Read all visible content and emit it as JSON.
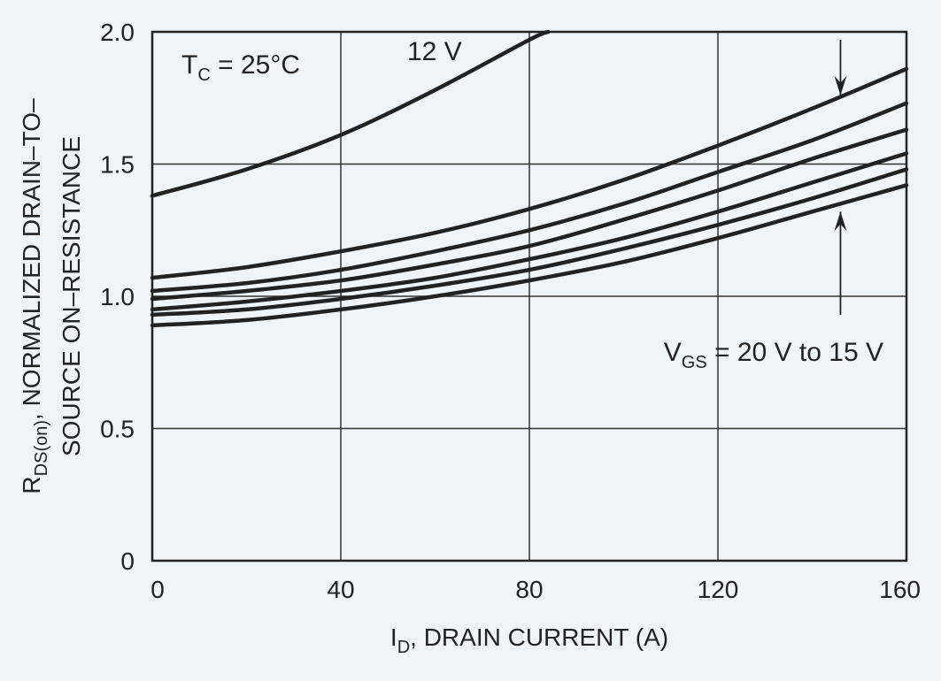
{
  "chart_data": {
    "type": "line",
    "title": "",
    "xlabel": {
      "main": "I",
      "sub": "D",
      "rest": ", DRAIN CURRENT (A)"
    },
    "ylabel": {
      "line1_main": "R",
      "line1_sub": "DS(on)",
      "line1_rest": ", NORMALIZED DRAIN–TO–",
      "line2": "SOURCE ON–RESISTANCE"
    },
    "xlim": [
      0,
      160
    ],
    "ylim": [
      0,
      2.0
    ],
    "xticks": [
      0,
      40,
      80,
      120,
      160
    ],
    "xtick_labels": [
      "0",
      "40",
      "80",
      "120",
      "160"
    ],
    "yticks": [
      0,
      0.5,
      1.0,
      1.5,
      2.0
    ],
    "ytick_labels": [
      "0",
      "0.5",
      "1.0",
      "1.5",
      "2.0"
    ],
    "grid": true,
    "series": [
      {
        "name": "12 V",
        "x": [
          0,
          20,
          40,
          60,
          80,
          84
        ],
        "y": [
          1.38,
          1.48,
          1.61,
          1.78,
          1.97,
          2.0
        ]
      },
      {
        "name": "VGS 1",
        "x": [
          0,
          20,
          40,
          60,
          80,
          100,
          120,
          140,
          160
        ],
        "y": [
          1.07,
          1.11,
          1.17,
          1.24,
          1.33,
          1.44,
          1.57,
          1.71,
          1.86
        ]
      },
      {
        "name": "VGS 2",
        "x": [
          0,
          20,
          40,
          60,
          80,
          100,
          120,
          140,
          160
        ],
        "y": [
          1.02,
          1.05,
          1.1,
          1.17,
          1.25,
          1.35,
          1.47,
          1.59,
          1.73
        ]
      },
      {
        "name": "VGS 3",
        "x": [
          0,
          20,
          40,
          60,
          80,
          100,
          120,
          140,
          160
        ],
        "y": [
          0.99,
          1.02,
          1.06,
          1.12,
          1.19,
          1.29,
          1.4,
          1.52,
          1.63
        ]
      },
      {
        "name": "VGS 4",
        "x": [
          0,
          20,
          40,
          60,
          80,
          100,
          120,
          140,
          160
        ],
        "y": [
          0.95,
          0.98,
          1.02,
          1.07,
          1.14,
          1.22,
          1.32,
          1.43,
          1.54
        ]
      },
      {
        "name": "VGS 5",
        "x": [
          0,
          20,
          40,
          60,
          80,
          100,
          120,
          140,
          160
        ],
        "y": [
          0.93,
          0.95,
          0.99,
          1.04,
          1.1,
          1.18,
          1.27,
          1.37,
          1.48
        ]
      },
      {
        "name": "VGS 6",
        "x": [
          0,
          20,
          40,
          60,
          80,
          100,
          120,
          140,
          160
        ],
        "y": [
          0.89,
          0.91,
          0.95,
          1.0,
          1.06,
          1.13,
          1.22,
          1.32,
          1.42
        ]
      }
    ],
    "annotations": {
      "tc": {
        "main": "T",
        "sub": "C",
        "rest": " = 25°C"
      },
      "v12": "12 V",
      "vgs": {
        "main": "V",
        "sub": "GS",
        "rest": " = 20 V to 15 V"
      }
    },
    "arrows": {
      "x": 146,
      "top_y": [
        1.97,
        1.76
      ],
      "bottom_y": [
        0.93,
        1.32
      ]
    }
  },
  "colors": {
    "background": "#eef4f8",
    "line": "#222222",
    "grid": "#333333"
  }
}
